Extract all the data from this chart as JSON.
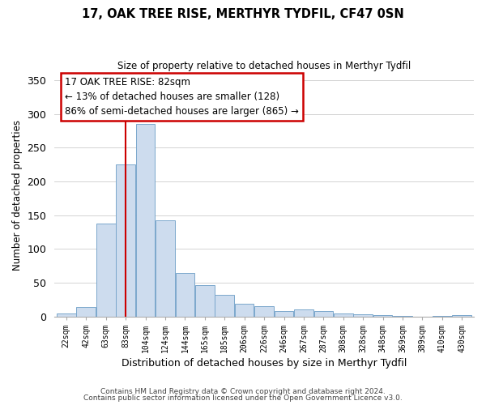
{
  "title": "17, OAK TREE RISE, MERTHYR TYDFIL, CF47 0SN",
  "subtitle": "Size of property relative to detached houses in Merthyr Tydfil",
  "xlabel": "Distribution of detached houses by size in Merthyr Tydfil",
  "ylabel": "Number of detached properties",
  "bar_labels": [
    "22sqm",
    "42sqm",
    "63sqm",
    "83sqm",
    "104sqm",
    "124sqm",
    "144sqm",
    "165sqm",
    "185sqm",
    "206sqm",
    "226sqm",
    "246sqm",
    "267sqm",
    "287sqm",
    "308sqm",
    "328sqm",
    "348sqm",
    "369sqm",
    "389sqm",
    "410sqm",
    "430sqm"
  ],
  "bar_values": [
    5,
    14,
    138,
    225,
    285,
    143,
    65,
    46,
    32,
    19,
    15,
    8,
    10,
    8,
    4,
    3,
    2,
    1,
    0,
    1,
    2
  ],
  "bar_color": "#cddcee",
  "bar_edge_color": "#7ba7cc",
  "vline_x_index": 3,
  "vline_color": "#cc0000",
  "ylim": [
    0,
    360
  ],
  "yticks": [
    0,
    50,
    100,
    150,
    200,
    250,
    300,
    350
  ],
  "annotation_title": "17 OAK TREE RISE: 82sqm",
  "annotation_line1": "← 13% of detached houses are smaller (128)",
  "annotation_line2": "86% of semi-detached houses are larger (865) →",
  "footer_line1": "Contains HM Land Registry data © Crown copyright and database right 2024.",
  "footer_line2": "Contains public sector information licensed under the Open Government Licence v3.0.",
  "background_color": "#ffffff",
  "grid_color": "#cccccc"
}
